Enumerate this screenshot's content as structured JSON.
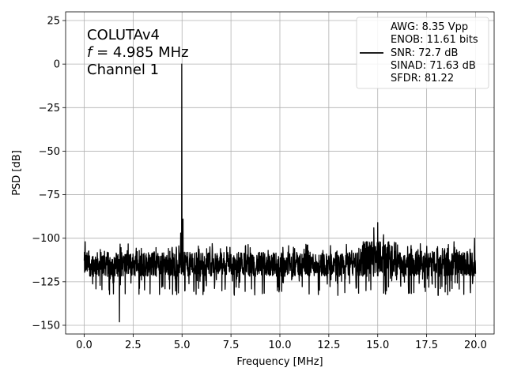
{
  "chart_data": {
    "type": "line",
    "xlabel": "Frequency [MHz]",
    "ylabel": "PSD [dB]",
    "xlim": [
      -0.95,
      20.95
    ],
    "ylim": [
      -155,
      30
    ],
    "xticks": [
      0.0,
      2.5,
      5.0,
      7.5,
      10.0,
      12.5,
      15.0,
      17.5,
      20.0
    ],
    "xtick_labels": [
      "0.0",
      "2.5",
      "5.0",
      "7.5",
      "10.0",
      "12.5",
      "15.0",
      "17.5",
      "20.0"
    ],
    "yticks": [
      25,
      0,
      -25,
      -50,
      -75,
      -100,
      -125,
      -150
    ],
    "ytick_labels": [
      "25",
      "0",
      "−25",
      "−50",
      "−75",
      "−100",
      "−125",
      "−150"
    ],
    "grid": true,
    "legend_position": "top-right",
    "annotation": {
      "line1": "COLUTAv4",
      "line2_italic": "f",
      "line2_rest": " = 4.985 MHz",
      "line3": "Channel 1"
    },
    "legend": {
      "line_color": "#000000",
      "entries": [
        "AWG: 8.35 Vpp",
        "ENOB: 11.61 bits",
        "SNR: 72.7 dB",
        "SINAD: 71.63 dB",
        "SFDR: 81.22"
      ]
    },
    "series": [
      {
        "color": "#000000",
        "noise_floor_db": -115,
        "noise_range_db": [
          -133,
          -102
        ],
        "peaks": [
          {
            "x": 4.985,
            "y": 0
          },
          {
            "x": 5.05,
            "y": -89
          },
          {
            "x": 4.93,
            "y": -97
          },
          {
            "x": 1.8,
            "y": -148
          },
          {
            "x": 15.0,
            "y": -91
          },
          {
            "x": 14.8,
            "y": -94
          },
          {
            "x": 15.3,
            "y": -98
          },
          {
            "x": 19.95,
            "y": -100
          },
          {
            "x": 0.05,
            "y": -102
          },
          {
            "x": 9.4,
            "y": -107
          },
          {
            "x": 12.2,
            "y": -107
          },
          {
            "x": 18.9,
            "y": -102
          }
        ]
      }
    ]
  }
}
